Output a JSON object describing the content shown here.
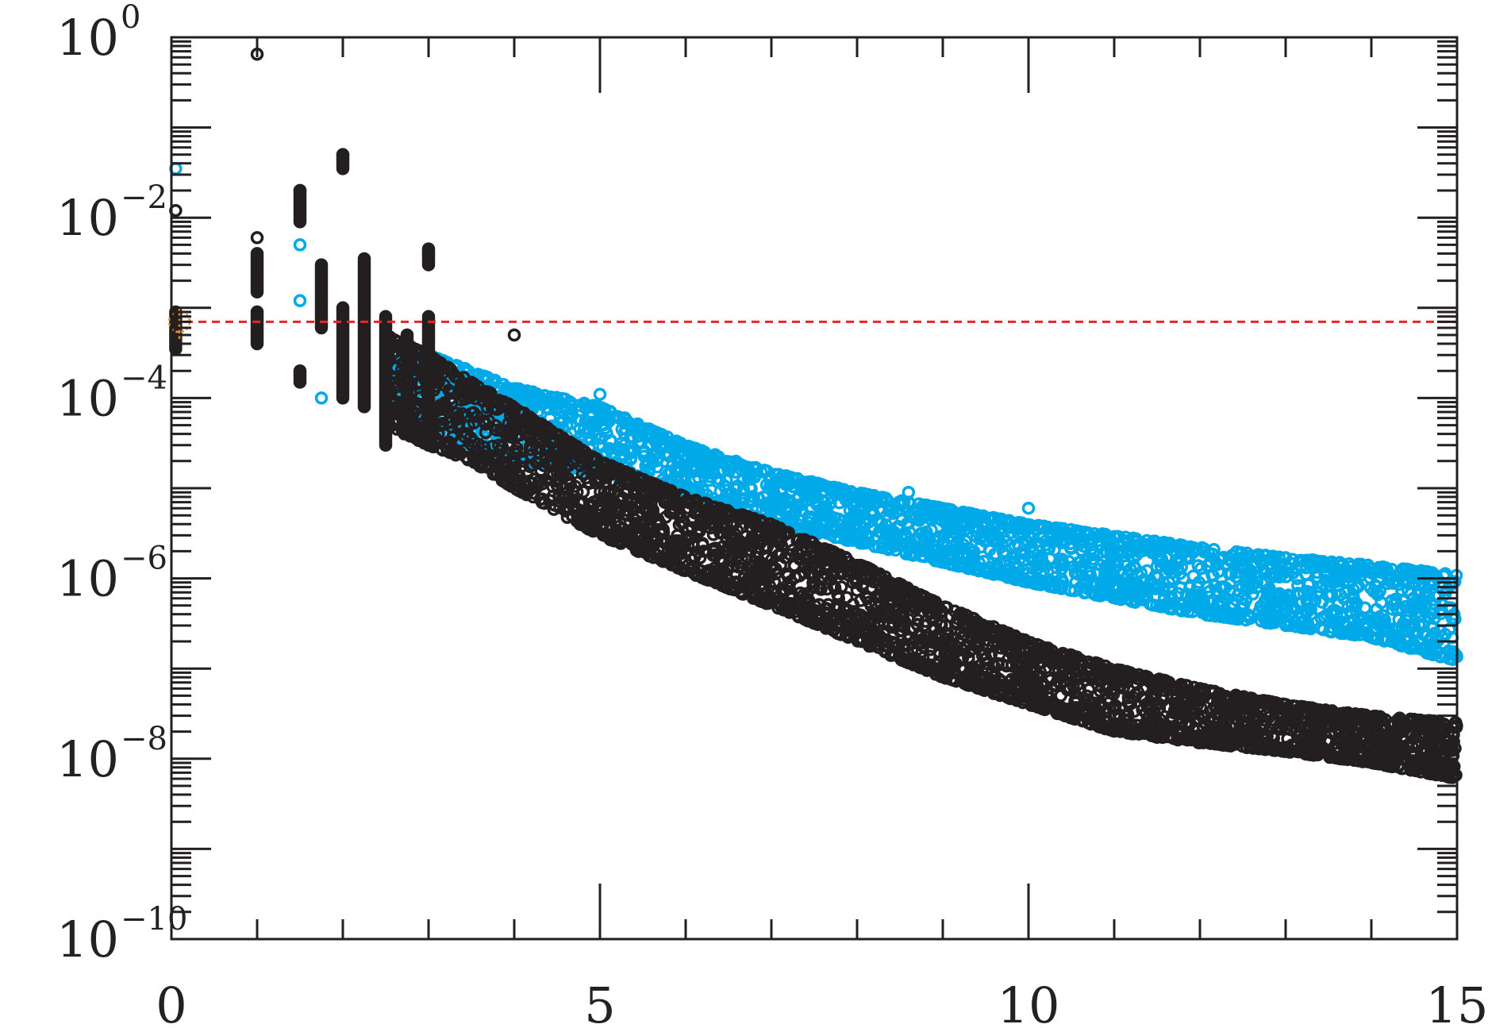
{
  "chart_data": {
    "type": "scatter",
    "title": "",
    "xlabel": "",
    "ylabel": "",
    "x_scale": "linear",
    "y_scale": "log",
    "xlim": [
      0,
      15
    ],
    "ylim": [
      1e-10,
      1
    ],
    "x_tick_labels": [
      "0",
      "5",
      "10",
      "15"
    ],
    "y_tick_labels": [
      {
        "base": "10",
        "exponent": "0"
      },
      {
        "base": "10",
        "exponent": "−2"
      },
      {
        "base": "10",
        "exponent": "−4"
      },
      {
        "base": "10",
        "exponent": "−6"
      },
      {
        "base": "10",
        "exponent": "−8"
      },
      {
        "base": "10",
        "exponent": "−10"
      }
    ],
    "grid": false,
    "legend": "none",
    "reference_line": {
      "y": 0.0007,
      "color": "#e8262a",
      "style": "dashed"
    },
    "reference_marker": {
      "x": 0.0,
      "y": 0.0007,
      "y_low": 0.00045,
      "y_high": 0.001,
      "color": "#f0901e"
    },
    "series": [
      {
        "color": "#00a9e8",
        "marker": "open-circle",
        "isolated_points": [
          {
            "x": 0.05,
            "y": 0.035
          },
          {
            "x": 1.0,
            "y": 0.0009
          },
          {
            "x": 1.5,
            "y": 0.005
          },
          {
            "x": 1.5,
            "y": 0.0012
          },
          {
            "x": 2.0,
            "y": 0.045
          },
          {
            "x": 1.75,
            "y": 0.0001
          },
          {
            "x": 4.15,
            "y": 0.00012
          },
          {
            "x": 5.0,
            "y": 0.00011
          },
          {
            "x": 8.1,
            "y": 1.1e-06
          },
          {
            "x": 8.6,
            "y": 9e-06
          },
          {
            "x": 10.0,
            "y": 6e-06
          },
          {
            "x": 14.5,
            "y": 1.2e-06
          }
        ],
        "band": [
          {
            "x": 2.5,
            "y_high": 0.00025,
            "y_low": 0.0001
          },
          {
            "x": 3.0,
            "y_high": 0.0003,
            "y_low": 5e-05
          },
          {
            "x": 3.5,
            "y_high": 0.0002,
            "y_low": 3e-05
          },
          {
            "x": 4.0,
            "y_high": 0.00013,
            "y_low": 2e-05
          },
          {
            "x": 5.0,
            "y_high": 8e-05,
            "y_low": 1.5e-05
          },
          {
            "x": 6.0,
            "y_high": 3e-05,
            "y_low": 8e-06
          },
          {
            "x": 7.0,
            "y_high": 1.5e-05,
            "y_low": 4e-06
          },
          {
            "x": 8.0,
            "y_high": 9e-06,
            "y_low": 2.5e-06
          },
          {
            "x": 9.0,
            "y_high": 6e-06,
            "y_low": 1.5e-06
          },
          {
            "x": 10.0,
            "y_high": 4e-06,
            "y_low": 9e-07
          },
          {
            "x": 11.0,
            "y_high": 3e-06,
            "y_low": 6e-07
          },
          {
            "x": 12.0,
            "y_high": 2.2e-06,
            "y_low": 4e-07
          },
          {
            "x": 13.0,
            "y_high": 1.7e-06,
            "y_low": 3e-07
          },
          {
            "x": 14.0,
            "y_high": 1.4e-06,
            "y_low": 2.2e-07
          },
          {
            "x": 15.0,
            "y_high": 1.1e-06,
            "y_low": 1.2e-07
          }
        ]
      },
      {
        "color": "#231f20",
        "marker": "open-circle",
        "isolated_points": [
          {
            "x": 1.0,
            "y": 0.65
          },
          {
            "x": 0.05,
            "y": 0.012
          },
          {
            "x": 1.0,
            "y": 0.006
          },
          {
            "x": 1.5,
            "y": 0.02
          },
          {
            "x": 2.0,
            "y": 0.05
          },
          {
            "x": 3.0,
            "y": 0.004
          },
          {
            "x": 4.0,
            "y": 0.0005
          },
          {
            "x": 7.0,
            "y": 3e-06
          },
          {
            "x": 8.0,
            "y": 9e-07
          },
          {
            "x": 10.0,
            "y": 8e-08
          },
          {
            "x": 12.0,
            "y": 6e-08
          },
          {
            "x": 14.85,
            "y": 2e-08
          }
        ],
        "columns": [
          {
            "x": 0.05,
            "y_high": 0.0009,
            "y_low": 0.00035
          },
          {
            "x": 1.0,
            "y_high": 0.004,
            "y_low": 0.0015
          },
          {
            "x": 1.0,
            "y_high": 0.0009,
            "y_low": 0.0004
          },
          {
            "x": 1.5,
            "y_high": 0.02,
            "y_low": 0.009
          },
          {
            "x": 1.5,
            "y_high": 0.0002,
            "y_low": 0.00015
          },
          {
            "x": 1.75,
            "y_high": 0.003,
            "y_low": 0.0006
          },
          {
            "x": 2.0,
            "y_high": 0.05,
            "y_low": 0.035
          },
          {
            "x": 2.0,
            "y_high": 0.001,
            "y_low": 0.0001
          },
          {
            "x": 2.25,
            "y_high": 0.0035,
            "y_low": 8e-05
          },
          {
            "x": 2.5,
            "y_high": 0.0008,
            "y_low": 3e-05
          },
          {
            "x": 2.75,
            "y_high": 0.0005,
            "y_low": 4e-05
          },
          {
            "x": 3.0,
            "y_high": 0.0045,
            "y_low": 0.003
          },
          {
            "x": 3.0,
            "y_high": 0.0008,
            "y_low": 3e-05
          }
        ],
        "band": [
          {
            "x": 2.5,
            "y_high": 0.0005,
            "y_low": 5e-05
          },
          {
            "x": 3.0,
            "y_high": 0.0003,
            "y_low": 3e-05
          },
          {
            "x": 3.5,
            "y_high": 0.00015,
            "y_low": 2e-05
          },
          {
            "x": 4.0,
            "y_high": 8e-05,
            "y_low": 1e-05
          },
          {
            "x": 5.0,
            "y_high": 2e-05,
            "y_low": 3e-06
          },
          {
            "x": 6.0,
            "y_high": 8e-06,
            "y_low": 1.2e-06
          },
          {
            "x": 7.0,
            "y_high": 4e-06,
            "y_low": 5e-07
          },
          {
            "x": 8.0,
            "y_high": 1.5e-06,
            "y_low": 2e-07
          },
          {
            "x": 9.0,
            "y_high": 5e-07,
            "y_low": 8e-08
          },
          {
            "x": 10.0,
            "y_high": 2e-07,
            "y_low": 4e-08
          },
          {
            "x": 11.0,
            "y_high": 1e-07,
            "y_low": 2e-08
          },
          {
            "x": 12.0,
            "y_high": 6e-08,
            "y_low": 1.5e-08
          },
          {
            "x": 13.0,
            "y_high": 4e-08,
            "y_low": 1.2e-08
          },
          {
            "x": 14.0,
            "y_high": 3e-08,
            "y_low": 9e-09
          },
          {
            "x": 15.0,
            "y_high": 2.5e-08,
            "y_low": 6e-09
          }
        ]
      }
    ]
  }
}
